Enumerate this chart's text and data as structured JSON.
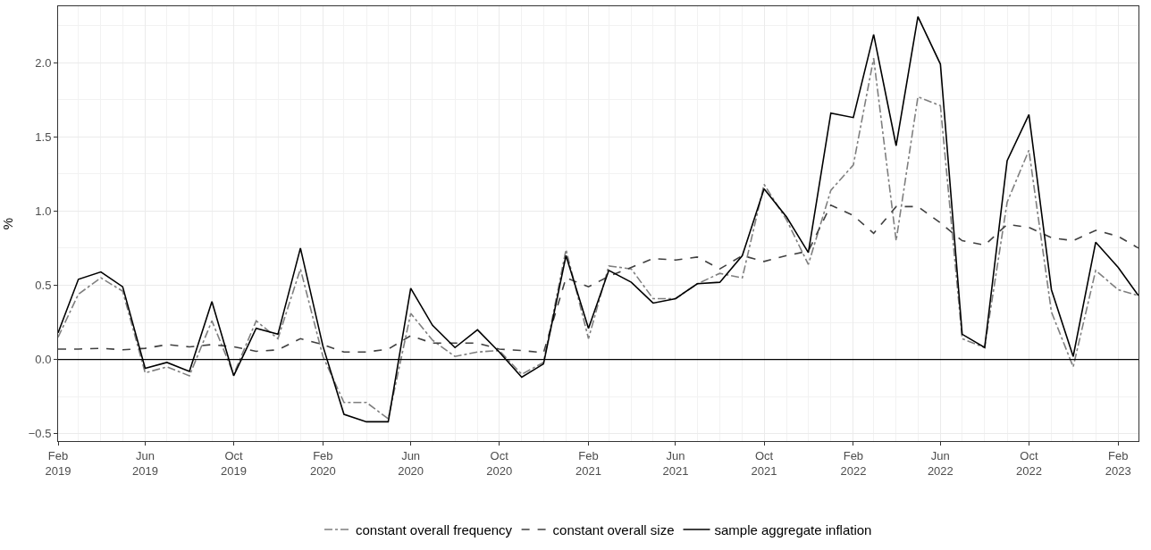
{
  "chart_data": {
    "type": "line",
    "ylabel": "%",
    "x": [
      "2019-02",
      "2019-03",
      "2019-04",
      "2019-05",
      "2019-06",
      "2019-07",
      "2019-08",
      "2019-09",
      "2019-10",
      "2019-11",
      "2019-12",
      "2020-01",
      "2020-02",
      "2020-03",
      "2020-04",
      "2020-05",
      "2020-06",
      "2020-07",
      "2020-08",
      "2020-09",
      "2020-10",
      "2020-11",
      "2020-12",
      "2021-01",
      "2021-02",
      "2021-03",
      "2021-04",
      "2021-05",
      "2021-06",
      "2021-07",
      "2021-08",
      "2021-09",
      "2021-10",
      "2021-11",
      "2021-12",
      "2022-01",
      "2022-02",
      "2022-03",
      "2022-04",
      "2022-05",
      "2022-06",
      "2022-07",
      "2022-08",
      "2022-09",
      "2022-10",
      "2022-11",
      "2022-12",
      "2023-01",
      "2023-02",
      "2023-03"
    ],
    "series": [
      {
        "name": "constant overall frequency",
        "color": "#7f7f7f",
        "line_style": "dashdot",
        "values": [
          0.15,
          0.44,
          0.55,
          0.46,
          -0.09,
          -0.05,
          -0.11,
          0.26,
          -0.1,
          0.26,
          0.14,
          0.61,
          0.02,
          -0.29,
          -0.29,
          -0.4,
          0.31,
          0.13,
          0.02,
          0.05,
          0.06,
          -0.1,
          -0.02,
          0.74,
          0.14,
          0.63,
          0.61,
          0.41,
          0.41,
          0.51,
          0.58,
          0.55,
          1.18,
          0.94,
          0.64,
          1.14,
          1.31,
          2.03,
          0.8,
          1.77,
          1.71,
          0.14,
          0.08,
          1.06,
          1.41,
          0.32,
          -0.05,
          0.6,
          0.47,
          0.43
        ]
      },
      {
        "name": "constant overall size",
        "color": "#404040",
        "line_style": "dashed",
        "values": [
          0.07,
          0.07,
          0.075,
          0.065,
          0.075,
          0.1,
          0.085,
          0.1,
          0.085,
          0.055,
          0.065,
          0.14,
          0.1,
          0.05,
          0.05,
          0.07,
          0.16,
          0.11,
          0.11,
          0.11,
          0.07,
          0.06,
          0.045,
          0.55,
          0.49,
          0.56,
          0.62,
          0.68,
          0.67,
          0.69,
          0.61,
          0.7,
          0.66,
          0.7,
          0.73,
          1.04,
          0.97,
          0.85,
          1.03,
          1.03,
          0.92,
          0.8,
          0.77,
          0.91,
          0.89,
          0.82,
          0.8,
          0.87,
          0.83,
          0.75
        ]
      },
      {
        "name": "sample aggregate inflation",
        "color": "#000000",
        "line_style": "solid",
        "values": [
          0.18,
          0.54,
          0.59,
          0.49,
          -0.06,
          -0.02,
          -0.08,
          0.39,
          -0.11,
          0.21,
          0.17,
          0.75,
          0.09,
          -0.37,
          -0.42,
          -0.42,
          0.48,
          0.23,
          0.08,
          0.2,
          0.05,
          -0.12,
          -0.03,
          0.7,
          0.21,
          0.6,
          0.52,
          0.38,
          0.41,
          0.51,
          0.52,
          0.7,
          1.15,
          0.96,
          0.72,
          1.66,
          1.63,
          2.19,
          1.44,
          2.31,
          1.99,
          0.17,
          0.08,
          1.34,
          1.65,
          0.47,
          0.02,
          0.79,
          0.62,
          0.43
        ]
      }
    ],
    "xlim": [
      "2019-02",
      "2023-03"
    ],
    "xticks": [
      {
        "value": "2019-02",
        "label": "Feb\n2019"
      },
      {
        "value": "2019-06",
        "label": "Jun\n2019"
      },
      {
        "value": "2019-10",
        "label": "Oct\n2019"
      },
      {
        "value": "2020-02",
        "label": "Feb\n2020"
      },
      {
        "value": "2020-06",
        "label": "Jun\n2020"
      },
      {
        "value": "2020-10",
        "label": "Oct\n2020"
      },
      {
        "value": "2021-02",
        "label": "Feb\n2021"
      },
      {
        "value": "2021-06",
        "label": "Jun\n2021"
      },
      {
        "value": "2021-10",
        "label": "Oct\n2021"
      },
      {
        "value": "2022-02",
        "label": "Feb\n2022"
      },
      {
        "value": "2022-06",
        "label": "Jun\n2022"
      },
      {
        "value": "2022-10",
        "label": "Oct\n2022"
      },
      {
        "value": "2023-02",
        "label": "Feb\n2023"
      }
    ],
    "ylim": [
      -0.55,
      2.38
    ],
    "yticks": [
      {
        "value": -0.5,
        "label": "−0.5"
      },
      {
        "value": 0,
        "label": "0.0"
      },
      {
        "value": 0.5,
        "label": "0.5"
      },
      {
        "value": 1,
        "label": "1.0"
      },
      {
        "value": 1.5,
        "label": "1.5"
      },
      {
        "value": 2,
        "label": "2.0"
      }
    ],
    "ref_lines": [
      {
        "axis": "y",
        "value": 0,
        "color": "#000000"
      }
    ],
    "grid": true,
    "legend": "bottom"
  }
}
